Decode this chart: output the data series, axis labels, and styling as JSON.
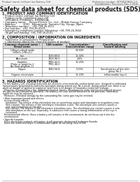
{
  "header_left": "Product name: Lithium Ion Battery Cell",
  "header_right_line1": "Reference number: SPX4040B3S-2.5",
  "header_right_line2": "Established / Revision: Dec.7.2010",
  "title": "Safety data sheet for chemical products (SDS)",
  "section1_title": "1. PRODUCT AND COMPANY IDENTIFICATION",
  "section1_lines": [
    "• Product name: Lithium Ion Battery Cell",
    "• Product code: Cylindrical type cell",
    "   (IFR18650, IFR18650L, IFR18650A",
    "• Company name:    Sanyo Electric Co., Ltd.,  Mobile Energy Company",
    "• Address:         2001   Kamomachi, Sumoto-City, Hyogo, Japan",
    "• Telephone number :  +81-799-26-4111",
    "• Fax number:  +81-799-26-4129",
    "• Emergency telephone number (Weekday) +81-799-26-3662",
    "   (Night and holiday) +81-799-26-4101"
  ],
  "section2_title": "2. COMPOSITION / INFORMATION ON INGREDIENTS",
  "section2_intro": "• Substance or preparation: Preparation",
  "section2_sub": "  • information about the chemical nature of product",
  "table_headers": [
    "Common chemical name /\nBrand name",
    "CAS number",
    "Concentration /\nConcentration range",
    "Classification and\nhazard labeling"
  ],
  "table_rows": [
    [
      "Lithium cobalt oxide\n(LiMnO₂-LiMn₂O₄)",
      "-",
      "30-60%",
      "-"
    ],
    [
      "Iron",
      "7439-89-6",
      "10-30%",
      "-"
    ],
    [
      "Aluminum",
      "7429-90-5",
      "2-8%",
      "-"
    ],
    [
      "Graphite\n(Flake or graphite-1\nAir-float graphite-1)",
      "7782-42-5\n7782-44-2",
      "10-25%",
      "-"
    ],
    [
      "Copper",
      "7440-50-8",
      "5-15%",
      "Sensitization of the skin\ngroup No.2"
    ],
    [
      "Organic electrolyte",
      "-",
      "10-20%",
      "Inflammable liquid"
    ]
  ],
  "section3_title": "3. HAZARDS IDENTIFICATION",
  "section3_text": [
    "For this battery cell, chemical materials are stored in a hermetically sealed metal case, designed to withstand",
    "temperatures generated by batteries-operation during normal use. As a result, during normal use, there is no",
    "physical danger of ignition or explosion and there is no danger of hazardous materials leakage.",
    "  However, if exposed to a fire, added mechanical shocks, decomposed, under electro-mechanical misuse,",
    "the gas insides can/will be operated. The battery cell case will be breached at fire-pressure, hazardous",
    "materials may be released.",
    "  Moreover, if heated strongly by the surrounding fire, some gas may be emitted.",
    "",
    "• Most important hazard and effects:",
    "  Human health effects:",
    "    Inhalation: The release of the electrolyte has an anesthesia action and stimulates to respiratory tract.",
    "    Skin contact: The release of the electrolyte stimulates a skin. The electrolyte skin contact causes a",
    "    sore and stimulation on the skin.",
    "    Eye contact: The release of the electrolyte stimulates eyes. The electrolyte eye contact causes a sore",
    "    and stimulation on the eye. Especially, a substance that causes a strong inflammation of the eye is",
    "    contained.",
    "  Environmental effects: Since a battery cell remains in the environment, do not throw out it into the",
    "  environment.",
    "",
    "• Specific hazards:",
    "  If the electrolyte contacts with water, it will generate detrimental hydrogen fluoride.",
    "  Since the used electrolyte is inflammable liquid, do not bring close to fire."
  ],
  "bg_color": "#ffffff",
  "line_color": "#999999",
  "text_color": "#111111",
  "gray_text": "#555555",
  "table_header_bg": "#d8d8d8"
}
